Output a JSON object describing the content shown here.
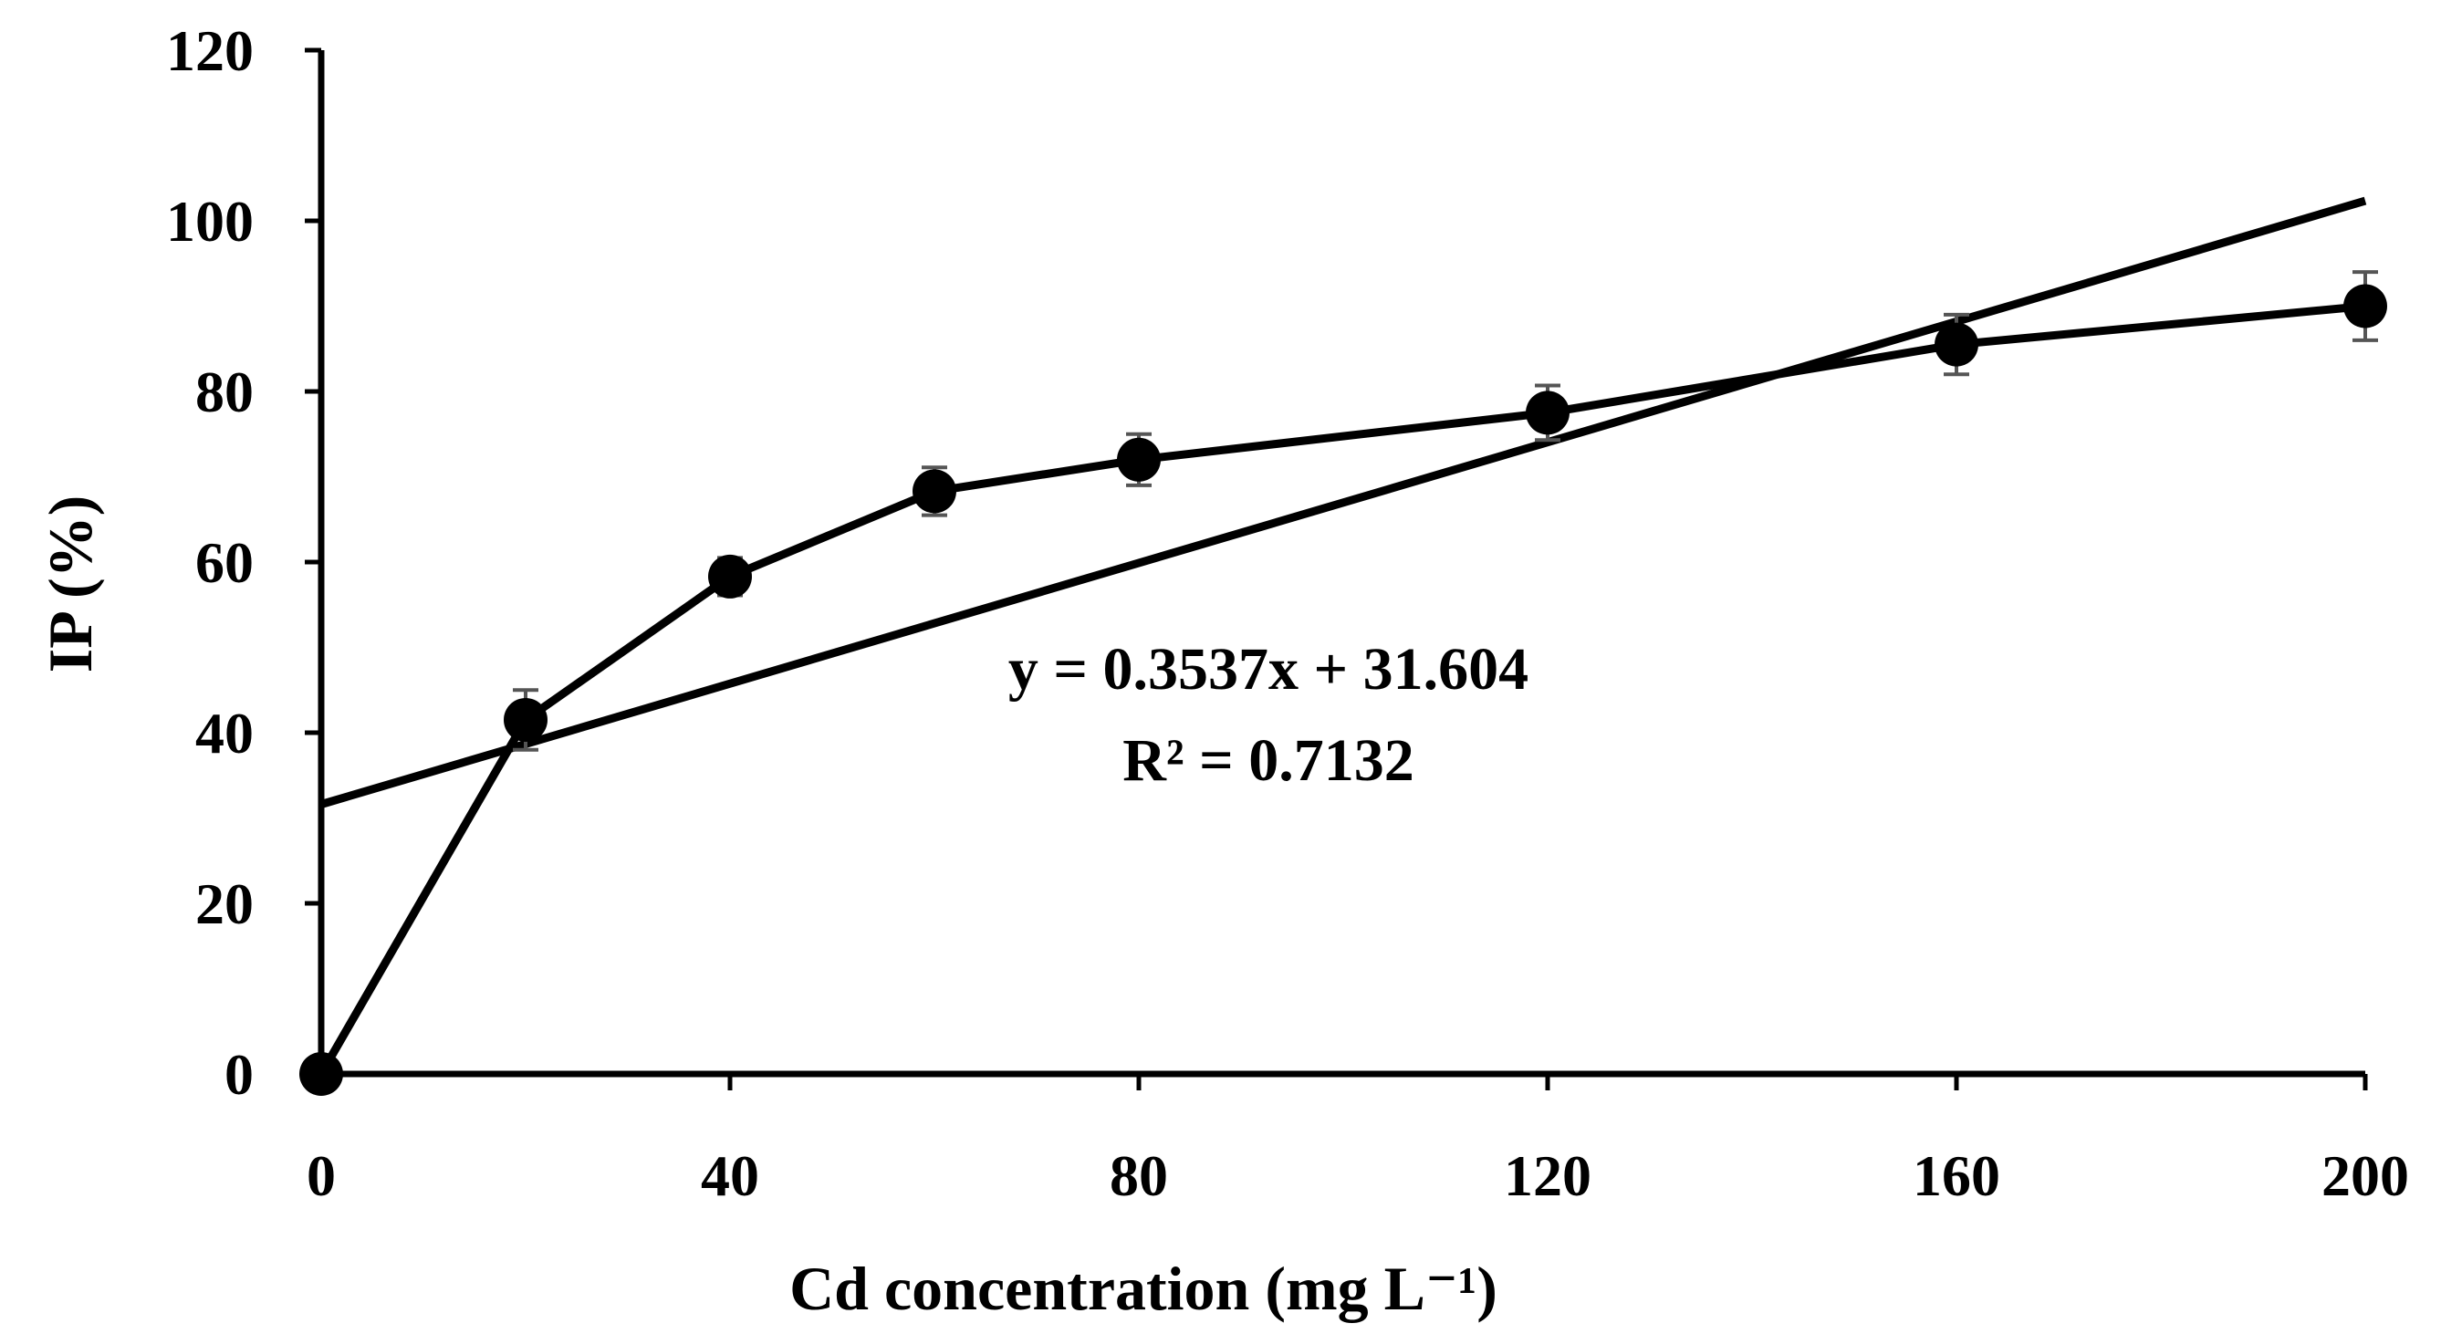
{
  "chart_data": {
    "type": "line",
    "title": "",
    "xlabel": "Cd concentration (mg L⁻¹)",
    "ylabel": "IP (%)",
    "xlim": [
      0,
      200
    ],
    "ylim": [
      0,
      120
    ],
    "x_ticks": [
      "0",
      "40",
      "80",
      "120",
      "160",
      "200"
    ],
    "y_ticks": [
      "0",
      "20",
      "40",
      "60",
      "80",
      "100",
      "120"
    ],
    "grid": false,
    "legend": "none",
    "series": [
      {
        "name": "IP",
        "x": [
          0,
          20,
          40,
          60,
          80,
          120,
          160,
          200
        ],
        "values": [
          0,
          41.5,
          58.3,
          68.3,
          72,
          77.5,
          85.5,
          90
        ],
        "errors": [
          0,
          3.5,
          2.2,
          2.8,
          3,
          3.2,
          3.5,
          4
        ],
        "marker": "circle",
        "color": "#000000",
        "error_color": "#555555"
      }
    ],
    "trendline": {
      "type": "linear",
      "slope": 0.3537,
      "intercept": 31.604,
      "x_range": [
        0,
        200
      ],
      "color": "#000000",
      "equation_label": "y = 0.3537x + 31.604",
      "r2_label": "R² = 0.7132"
    }
  }
}
